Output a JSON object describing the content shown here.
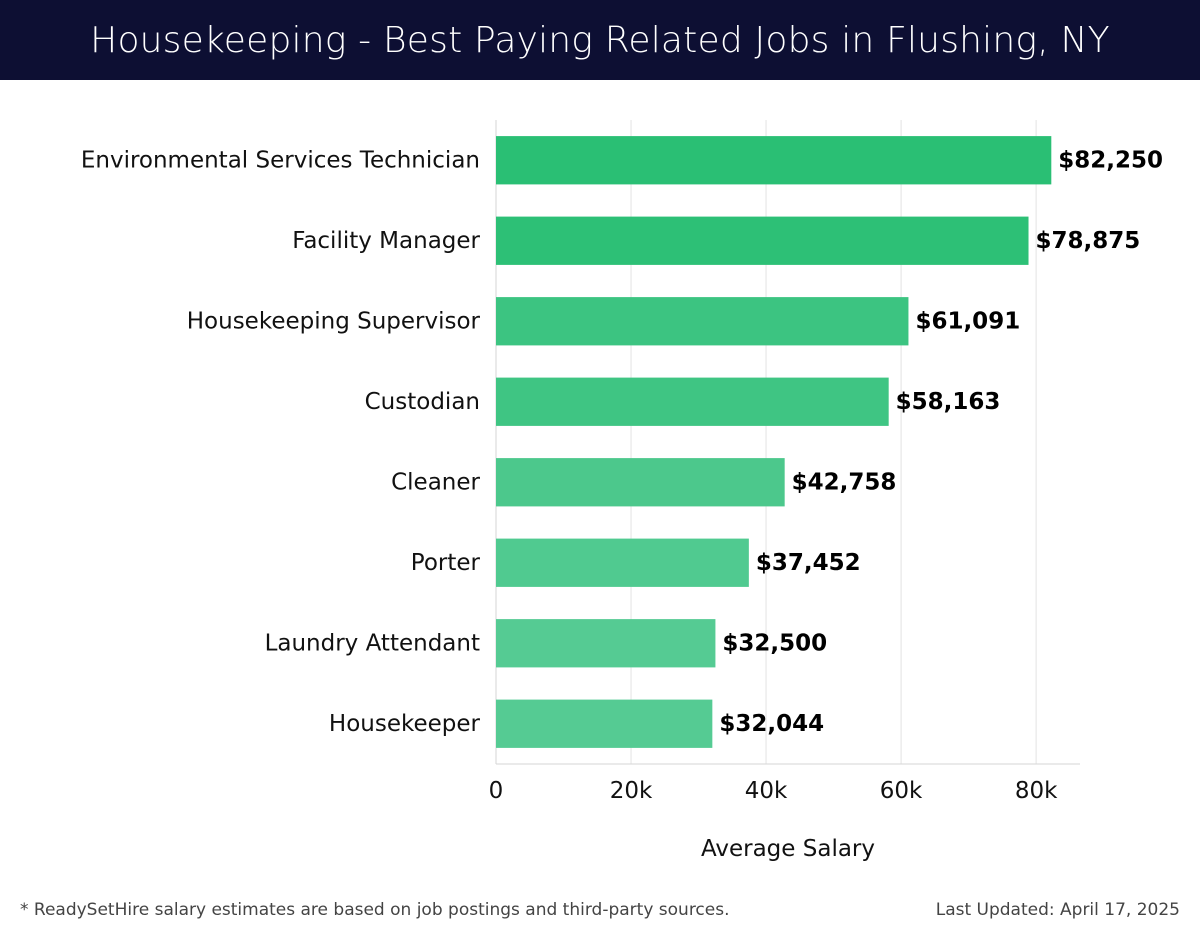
{
  "header": {
    "title": "Housekeeping - Best Paying Related Jobs in Flushing, NY"
  },
  "colors": {
    "header_bg": "#0d0f33",
    "bar_dark": "#2abf74",
    "bar_light": "#55cb93",
    "grid": "#e3e3e3"
  },
  "chart_data": {
    "type": "bar",
    "orientation": "horizontal",
    "categories": [
      "Environmental Services Technician",
      "Facility Manager",
      "Housekeeping Supervisor",
      "Custodian",
      "Cleaner",
      "Porter",
      "Laundry Attendant",
      "Housekeeper"
    ],
    "values": [
      82250,
      78875,
      61091,
      58163,
      42758,
      37452,
      32500,
      32044
    ],
    "value_labels": [
      "$82,250",
      "$78,875",
      "$61,091",
      "$58,163",
      "$42,758",
      "$37,452",
      "$32,500",
      "$32,044"
    ],
    "xlabel": "Average Salary",
    "ylabel": "",
    "xlim": [
      0,
      86500
    ],
    "xticks": [
      0,
      20000,
      40000,
      60000,
      80000
    ],
    "xtick_labels": [
      "0",
      "20k",
      "40k",
      "60k",
      "80k"
    ],
    "grid": true,
    "legend": "none"
  },
  "footer": {
    "note": "* ReadySetHire salary estimates are based on job postings and third-party sources.",
    "updated": "Last Updated: April 17, 2025"
  }
}
